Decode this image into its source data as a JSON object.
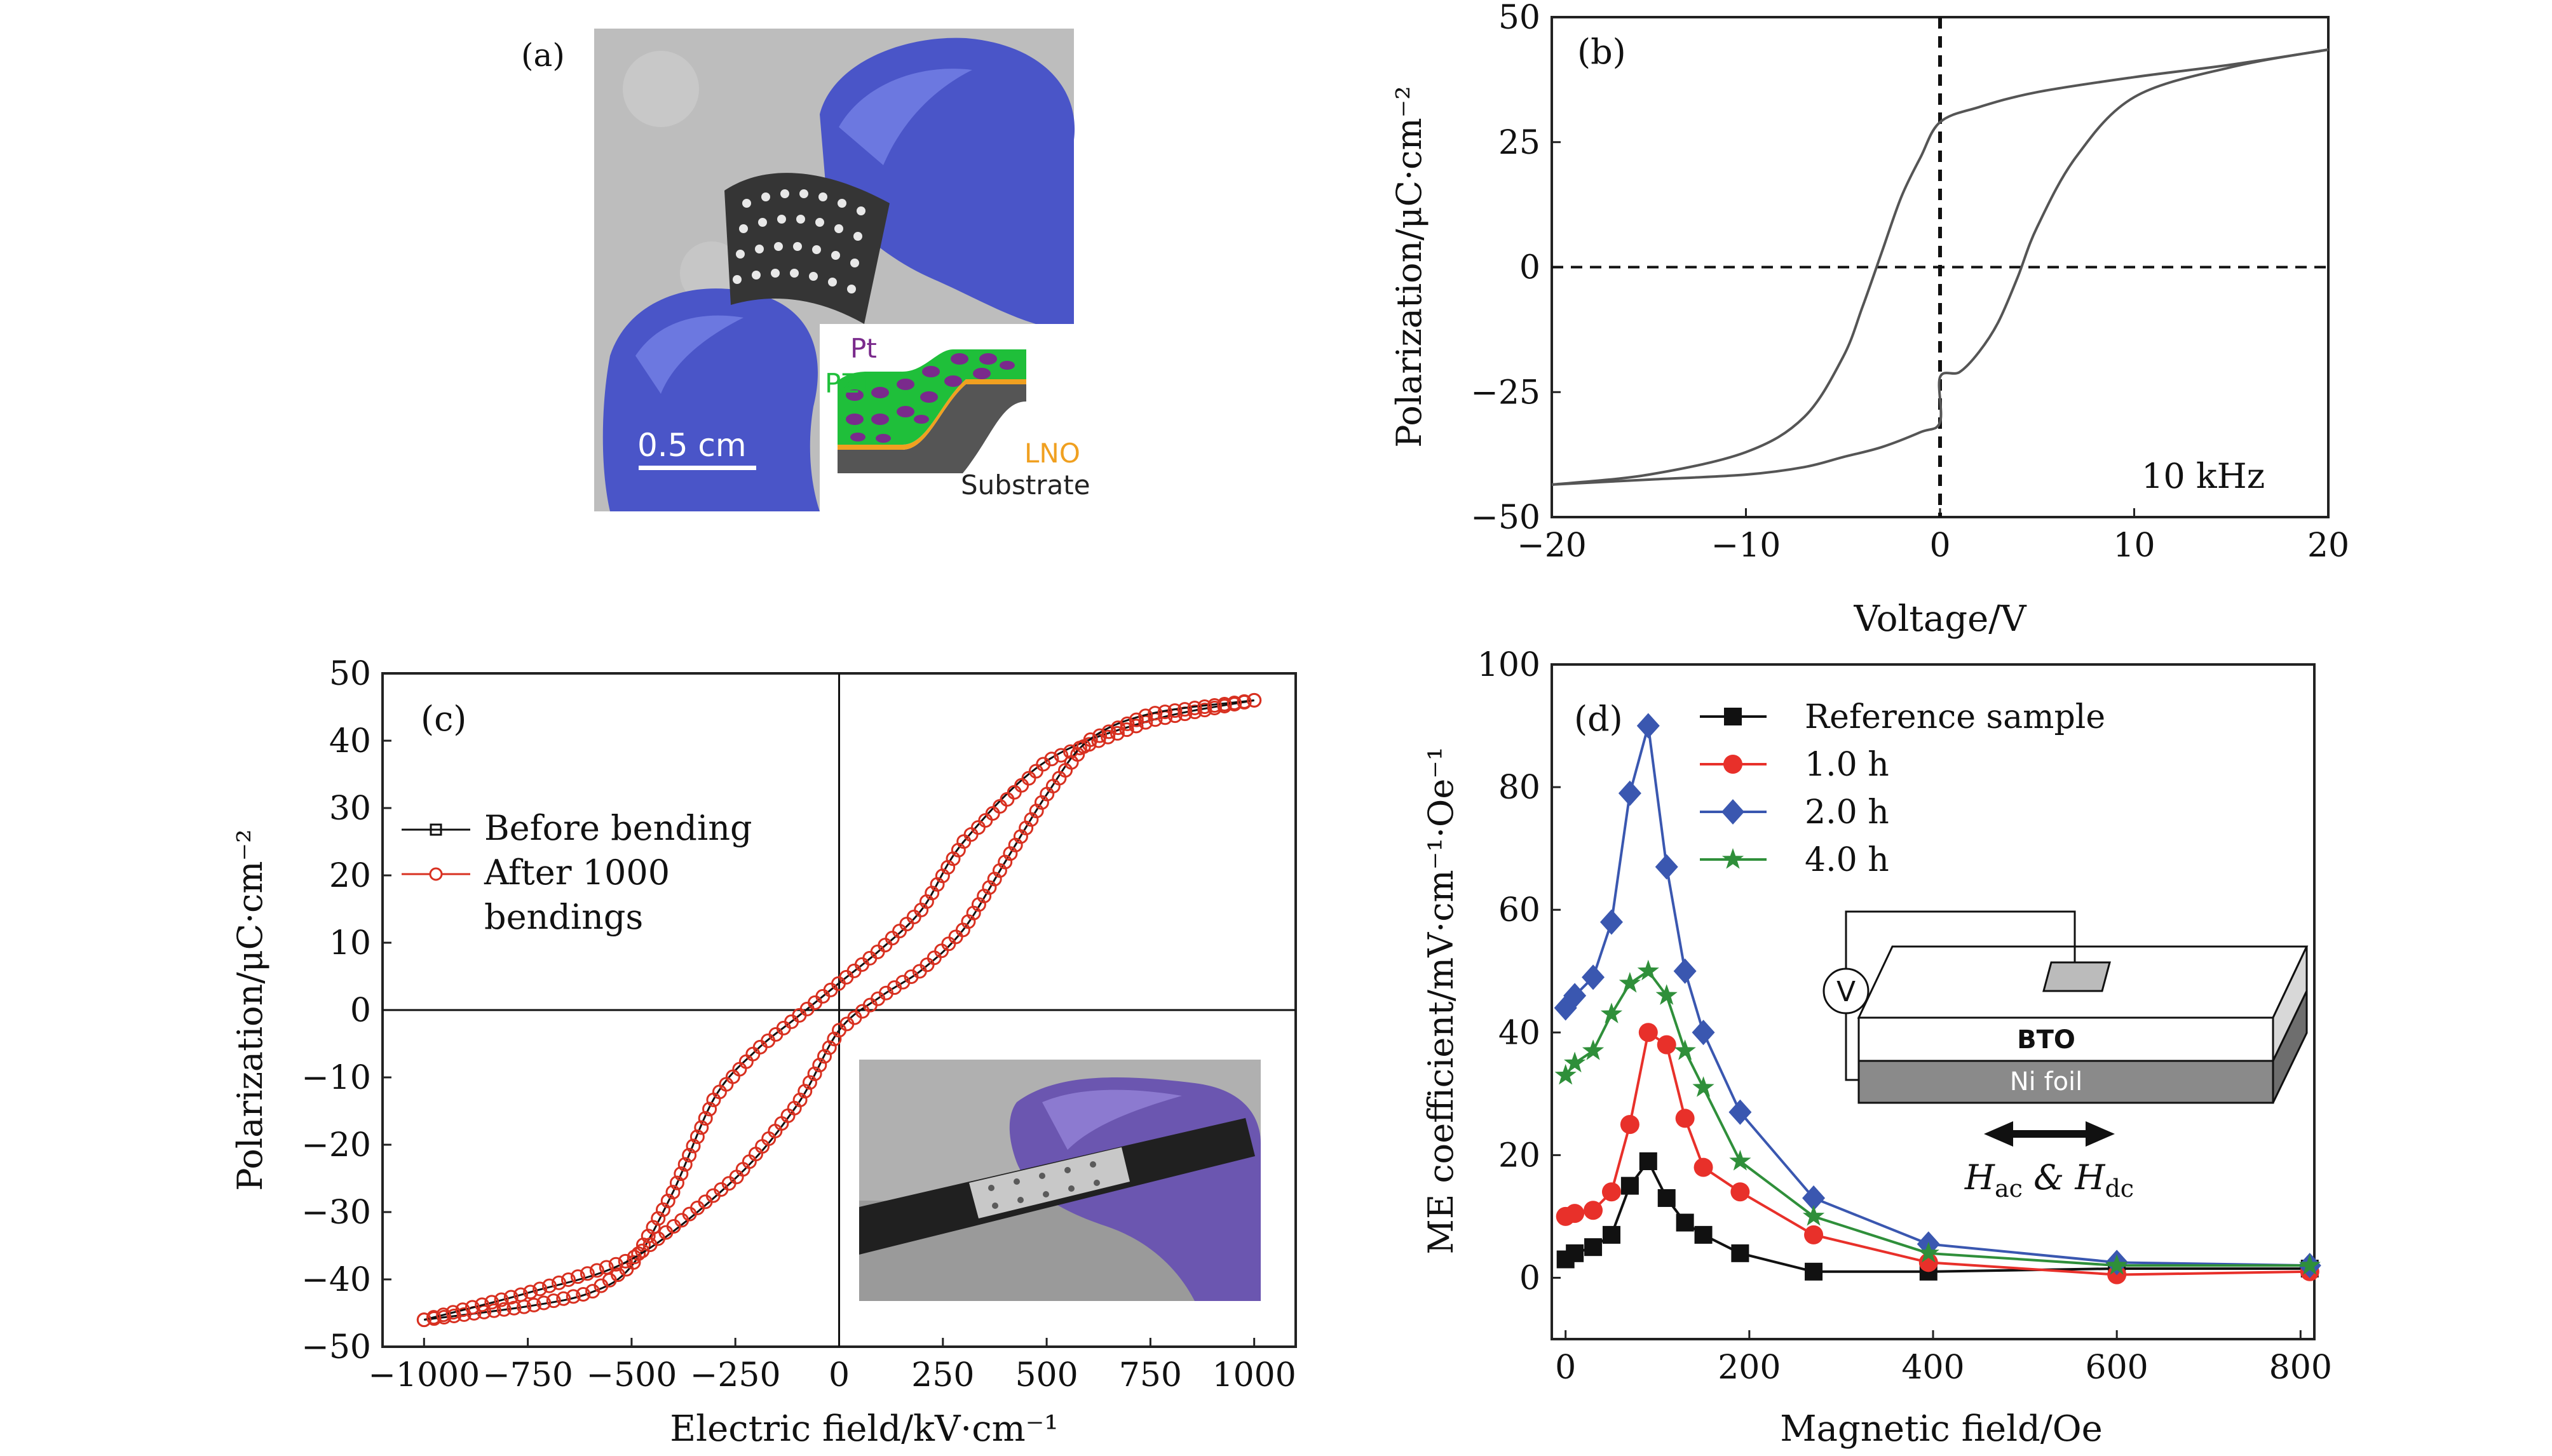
{
  "panel_a": {
    "label": "(a)",
    "scale_bar": "0.5 cm",
    "layers": {
      "top": "Pt",
      "film": "PZT",
      "electrode": "LNO",
      "base": "Substrate"
    },
    "colors": {
      "glove": "#4a55c8",
      "background": "#b9b9b9",
      "pt": "#7a2a8c",
      "pzt": "#1fbf3a",
      "lno": "#f0a020"
    }
  },
  "panel_c_inset": {
    "colors": {
      "glove": "#6b56b0",
      "rod": "#202020"
    }
  },
  "panel_d_schematic": {
    "meter": "V",
    "top_layer": "BTO",
    "bottom_layer": "Ni foil",
    "field_label": "H",
    "field_ac": "ac",
    "field_amp": " & H",
    "field_dc": "dc"
  },
  "chart_data": [
    {
      "id": "b",
      "type": "line",
      "label": "(b)",
      "xlabel": "Voltage/V",
      "ylabel": "Polarization/μC·cm⁻²",
      "xlim": [
        -20,
        20
      ],
      "ylim": [
        -50,
        50
      ],
      "xticks": [
        -20,
        -10,
        0,
        10,
        20
      ],
      "xtick_labels": [
        "−20",
        "−10",
        "0",
        "10",
        "20"
      ],
      "yticks": [
        -50,
        -25,
        0,
        25,
        50
      ],
      "ytick_labels": [
        "−50",
        "−25",
        "0",
        "25",
        "50"
      ],
      "annotation": "10 kHz",
      "series": [
        {
          "name": "ascending branch",
          "x": [
            -20,
            -15,
            -10,
            -7,
            -5,
            -3,
            -1,
            0,
            0,
            1,
            2,
            3,
            4,
            5,
            7,
            10,
            15,
            20
          ],
          "y": [
            -43.5,
            -42.5,
            -41.5,
            -40,
            -38,
            -36,
            -33,
            -31,
            -22,
            -21,
            -17,
            -11,
            -2,
            8,
            22,
            34,
            40,
            43.5
          ]
        },
        {
          "name": "descending branch",
          "x": [
            20,
            15,
            10,
            5,
            2,
            0,
            -1,
            -2,
            -3,
            -4,
            -5,
            -7,
            -10,
            -15,
            -20
          ],
          "y": [
            43.5,
            40.5,
            38,
            35,
            32,
            29,
            22,
            14,
            3,
            -8,
            -18,
            -30,
            -37,
            -41.5,
            -43.5
          ]
        }
      ]
    },
    {
      "id": "c",
      "type": "scatter",
      "label": "(c)",
      "xlabel": "Electric field/kV·cm⁻¹",
      "ylabel": "Polarization/μC·cm⁻²",
      "xlim": [
        -1100,
        1100
      ],
      "ylim": [
        -50,
        50
      ],
      "xticks": [
        -1000,
        -750,
        -500,
        -250,
        0,
        250,
        500,
        750,
        1000
      ],
      "xtick_labels": [
        "−1000",
        "−750",
        "−500",
        "−250",
        "0",
        "250",
        "500",
        "750",
        "1000"
      ],
      "yticks": [
        -50,
        -40,
        -30,
        -20,
        -10,
        0,
        10,
        20,
        30,
        40,
        50
      ],
      "ytick_labels": [
        "−50",
        "−40",
        "−30",
        "−20",
        "−10",
        "0",
        "10",
        "20",
        "30",
        "40",
        "50"
      ],
      "legend": [
        "Before bending",
        "After 1000",
        "bendings"
      ],
      "series": [
        {
          "name": "upper branch",
          "x": [
            1000,
            750,
            500,
            300,
            200,
            100,
            0,
            -100,
            -200,
            -300,
            -400,
            -500,
            -600,
            -750,
            -1000
          ],
          "y": [
            46,
            43,
            37,
            25,
            15,
            9,
            4,
            -1,
            -6,
            -13,
            -27,
            -38,
            -42,
            -44,
            -46
          ]
        },
        {
          "name": "lower branch",
          "x": [
            -1000,
            -750,
            -500,
            -250,
            -100,
            0,
            100,
            200,
            300,
            400,
            500,
            600,
            750,
            1000
          ],
          "y": [
            -46,
            -42,
            -37,
            -25,
            -14,
            -3,
            2,
            6,
            12,
            22,
            32,
            40,
            44,
            46
          ]
        }
      ]
    },
    {
      "id": "d",
      "type": "line",
      "label": "(d)",
      "xlabel": "Magnetic field/Oe",
      "ylabel": "ME coefficient/mV·cm⁻¹·Oe⁻¹",
      "xlim": [
        -15,
        815
      ],
      "ylim": [
        -10,
        100
      ],
      "xticks": [
        0,
        200,
        400,
        600,
        800
      ],
      "xtick_labels": [
        "0",
        "200",
        "400",
        "600",
        "800"
      ],
      "yticks": [
        0,
        20,
        40,
        60,
        80,
        100
      ],
      "ytick_labels": [
        "0",
        "20",
        "40",
        "60",
        "80",
        "100"
      ],
      "x": [
        0,
        10,
        30,
        50,
        70,
        90,
        110,
        130,
        150,
        190,
        270,
        395,
        600,
        810
      ],
      "series": [
        {
          "name": "Reference sample",
          "marker": "square",
          "color": "#111111",
          "values": [
            3,
            4,
            5,
            7,
            15,
            19,
            13,
            9,
            7,
            4,
            1,
            1,
            1.5,
            1.5
          ]
        },
        {
          "name": "1.0 h",
          "marker": "circle",
          "color": "#e8302a",
          "values": [
            10,
            10.5,
            11,
            14,
            25,
            40,
            38,
            26,
            18,
            14,
            7,
            2.5,
            0.5,
            1
          ]
        },
        {
          "name": "2.0 h",
          "marker": "diamond",
          "color": "#3a57b0",
          "values": [
            44,
            46,
            49,
            58,
            79,
            90,
            67,
            50,
            40,
            27,
            13,
            5.5,
            2.5,
            2
          ]
        },
        {
          "name": "4.0 h",
          "marker": "star",
          "color": "#2f8f3a",
          "values": [
            33,
            35,
            37,
            43,
            48,
            50,
            46,
            37,
            31,
            19,
            10,
            4,
            2,
            2
          ]
        }
      ]
    }
  ]
}
